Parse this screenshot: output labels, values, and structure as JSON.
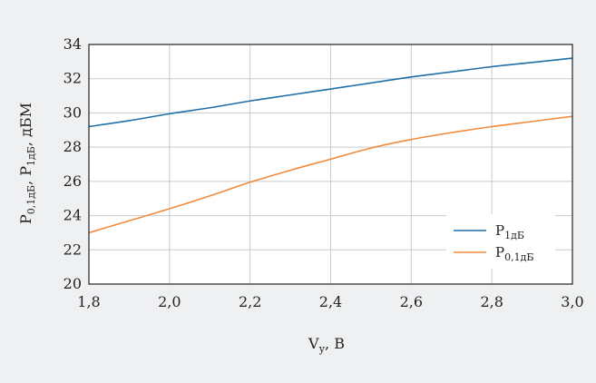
{
  "chart_data": {
    "type": "line",
    "xlabel": {
      "main": "V",
      "sub": "у",
      "suffix": ", В"
    },
    "ylabel": {
      "p1_main": "P",
      "p1_sub": "0,1дБ",
      "sep": ", ",
      "p2_main": "P",
      "p2_sub": "1дБ",
      "suffix": ", дБМ"
    },
    "xlim": [
      1.8,
      3.0
    ],
    "ylim": [
      20,
      34
    ],
    "xticks": [
      1.8,
      2.0,
      2.2,
      2.4,
      2.6,
      2.8,
      3.0
    ],
    "xtick_labels": [
      "1,8",
      "2,0",
      "2,2",
      "2,4",
      "2,6",
      "2,8",
      "3,0"
    ],
    "yticks": [
      20,
      22,
      24,
      26,
      28,
      30,
      32,
      34
    ],
    "ytick_labels": [
      "20",
      "22",
      "24",
      "26",
      "28",
      "30",
      "32",
      "34"
    ],
    "grid": true,
    "legend_position": "bottom-right",
    "series": [
      {
        "name": "P1дБ",
        "label_main": "P",
        "label_sub": "1дБ",
        "color": "#1f6fa8",
        "x": [
          1.8,
          1.9,
          2.0,
          2.1,
          2.2,
          2.3,
          2.4,
          2.5,
          2.6,
          2.7,
          2.8,
          2.9,
          3.0
        ],
        "y": [
          29.2,
          29.55,
          29.95,
          30.3,
          30.7,
          31.05,
          31.4,
          31.75,
          32.1,
          32.4,
          32.7,
          32.95,
          33.2
        ]
      },
      {
        "name": "P0,1дБ",
        "label_main": "P",
        "label_sub": "0,1дБ",
        "color": "#f08a3c",
        "x": [
          1.8,
          1.9,
          2.0,
          2.1,
          2.2,
          2.3,
          2.4,
          2.5,
          2.6,
          2.7,
          2.8,
          2.9,
          3.0
        ],
        "y": [
          23.0,
          23.7,
          24.4,
          25.15,
          25.95,
          26.65,
          27.3,
          27.95,
          28.45,
          28.85,
          29.2,
          29.5,
          29.8
        ]
      }
    ]
  }
}
